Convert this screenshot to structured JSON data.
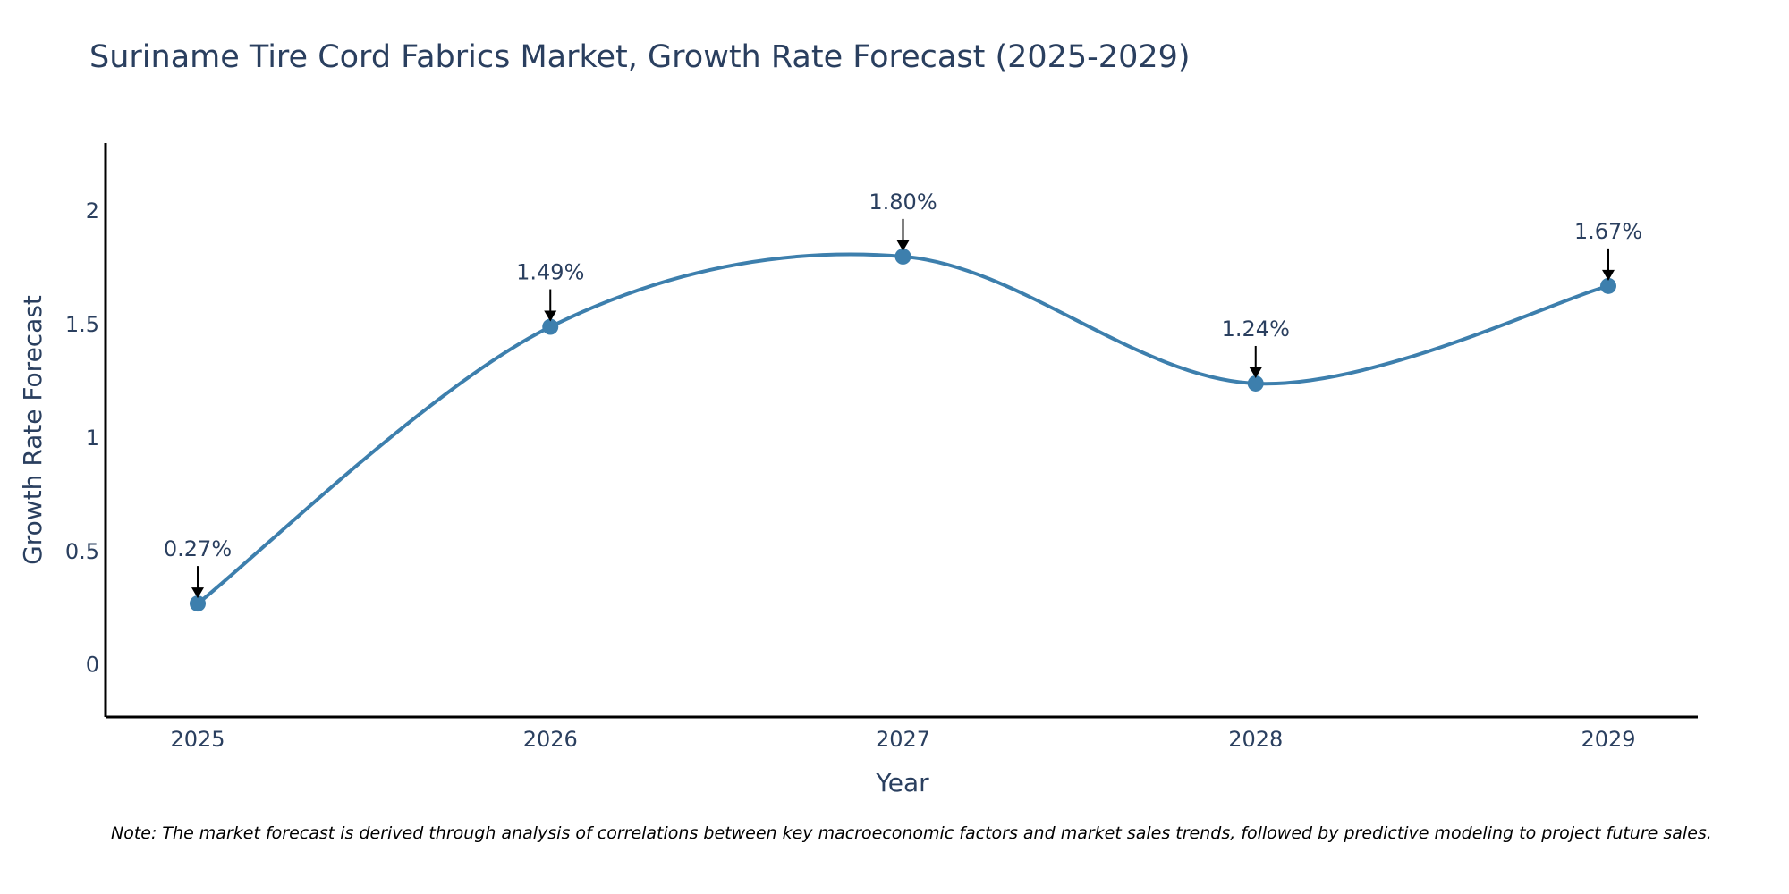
{
  "chart_data": {
    "type": "line",
    "title": "Suriname Tire Cord Fabrics Market, Growth Rate Forecast (2025-2029)",
    "xlabel": "Year",
    "ylabel": "Growth Rate Forecast",
    "categories": [
      "2025",
      "2026",
      "2027",
      "2028",
      "2029"
    ],
    "values": [
      0.27,
      1.49,
      1.8,
      1.24,
      1.67
    ],
    "data_labels": [
      "0.27%",
      "1.49%",
      "1.80%",
      "1.24%",
      "1.67%"
    ],
    "yticks": [
      0,
      0.5,
      1,
      1.5,
      2
    ],
    "ytick_labels": [
      "0",
      "0.5",
      "1",
      "1.5",
      "2"
    ],
    "ylim": [
      -0.23,
      2.3
    ],
    "line_color": "#3d7fad",
    "marker_color": "#3d7fad",
    "arrow_color": "#000000",
    "grid": false,
    "line_shape": "smooth"
  },
  "footnote": "Note: The market forecast is derived through analysis of correlations between key macroeconomic factors and market sales trends, followed by predictive modeling to project future sales."
}
